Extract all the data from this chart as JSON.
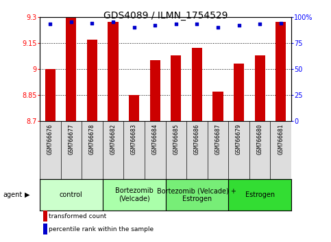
{
  "title": "GDS4089 / ILMN_1754529",
  "samples": [
    "GSM766676",
    "GSM766677",
    "GSM766678",
    "GSM766682",
    "GSM766683",
    "GSM766684",
    "GSM766685",
    "GSM766686",
    "GSM766687",
    "GSM766679",
    "GSM766680",
    "GSM766681"
  ],
  "bar_values": [
    9.0,
    9.3,
    9.17,
    9.27,
    8.85,
    9.05,
    9.08,
    9.12,
    8.87,
    9.03,
    9.08,
    9.27
  ],
  "percentile_values": [
    93,
    95,
    94,
    95,
    90,
    92,
    93,
    93,
    90,
    92,
    93,
    94
  ],
  "bar_color": "#cc0000",
  "percentile_color": "#0000cc",
  "ylim_min": 8.7,
  "ylim_max": 9.3,
  "yticks": [
    8.7,
    8.85,
    9.0,
    9.15,
    9.3
  ],
  "ytick_labels": [
    "8.7",
    "8.85",
    "9",
    "9.15",
    "9.3"
  ],
  "right_yticks": [
    0,
    25,
    50,
    75,
    100
  ],
  "right_ytick_labels": [
    "0",
    "25",
    "50",
    "75",
    "100%"
  ],
  "groups": [
    {
      "label": "control",
      "start": 0,
      "end": 3,
      "color": "#ccffcc"
    },
    {
      "label": "Bortezomib\n(Velcade)",
      "start": 3,
      "end": 6,
      "color": "#aaffaa"
    },
    {
      "label": "Bortezomib (Velcade) +\nEstrogen",
      "start": 6,
      "end": 9,
      "color": "#77ee77"
    },
    {
      "label": "Estrogen",
      "start": 9,
      "end": 12,
      "color": "#33dd33"
    }
  ],
  "agent_label": "agent",
  "legend_bar_label": "transformed count",
  "legend_pct_label": "percentile rank within the sample",
  "title_fontsize": 10,
  "tick_fontsize": 7,
  "label_fontsize": 6,
  "group_fontsize": 7,
  "sample_bg_color": "#dddddd",
  "chart_bg": "#ffffff"
}
